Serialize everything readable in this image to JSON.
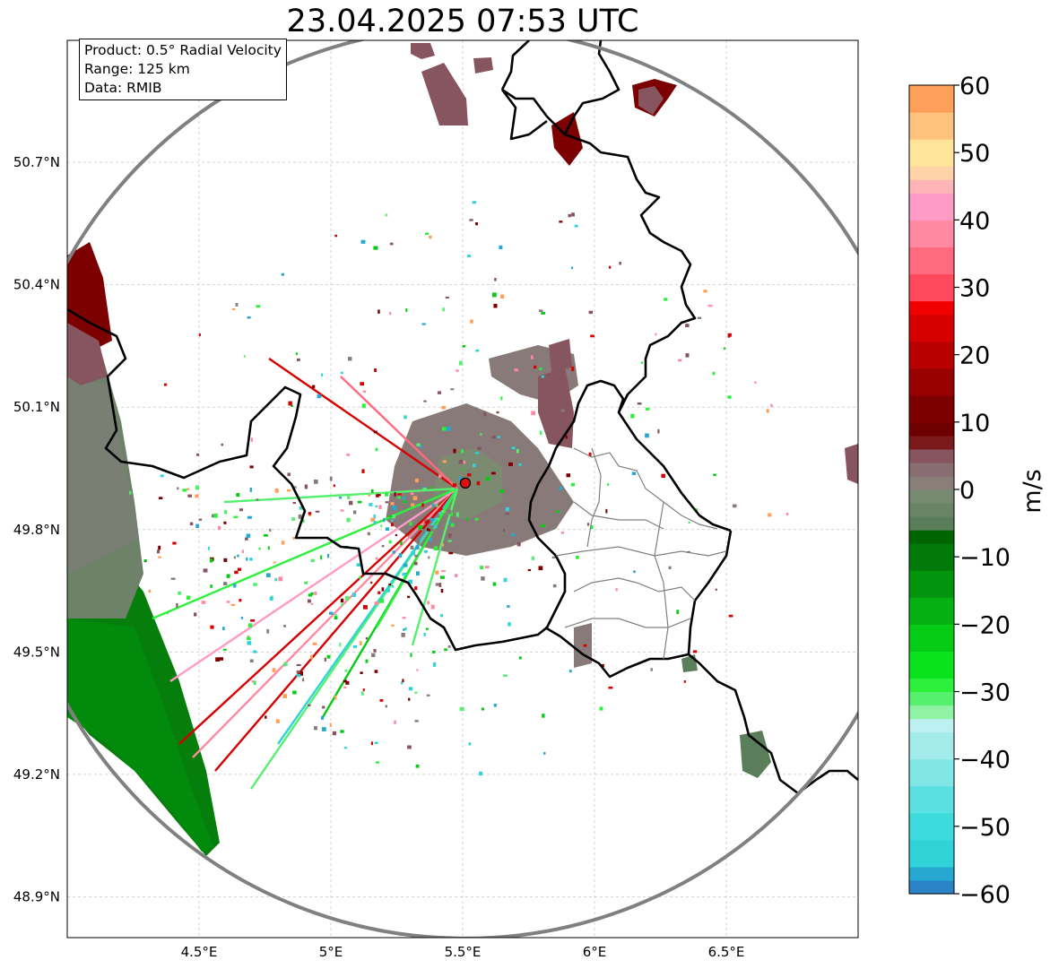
{
  "title": "23.04.2025 07:53 UTC",
  "info": {
    "product": "Product: 0.5° Radial Velocity",
    "range": "Range: 125 km",
    "data": "Data: RMIB"
  },
  "map": {
    "lon_ticks": [
      {
        "value": 4.5,
        "label": "4.5°E"
      },
      {
        "value": 5.0,
        "label": "5°E"
      },
      {
        "value": 5.5,
        "label": "5.5°E"
      },
      {
        "value": 6.0,
        "label": "6°E"
      },
      {
        "value": 6.5,
        "label": "6.5°E"
      }
    ],
    "lat_ticks": [
      {
        "value": 50.7,
        "label": "50.7°N"
      },
      {
        "value": 50.4,
        "label": "50.4°N"
      },
      {
        "value": 50.1,
        "label": "50.1°N"
      },
      {
        "value": 49.8,
        "label": "49.8°N"
      },
      {
        "value": 49.5,
        "label": "49.5°N"
      },
      {
        "value": 49.2,
        "label": "49.2°N"
      },
      {
        "value": 48.9,
        "label": "48.9°N"
      }
    ],
    "lon_range": [
      4.0,
      7.0
    ],
    "lat_range": [
      48.8,
      50.999
    ],
    "radar_site": {
      "lon": 5.51,
      "lat": 49.914
    },
    "range_km": 125,
    "grid": true,
    "range_ring_color": "#808080",
    "border_color": "#000000",
    "province_color": "#808080",
    "radar_marker_color": "#dd1111"
  },
  "colorbar": {
    "label": "m/s",
    "min": -60,
    "max": 60,
    "ticks": [
      {
        "value": 60,
        "label": "60"
      },
      {
        "value": 50,
        "label": "50"
      },
      {
        "value": 40,
        "label": "40"
      },
      {
        "value": 30,
        "label": "30"
      },
      {
        "value": 20,
        "label": "20"
      },
      {
        "value": 10,
        "label": "10"
      },
      {
        "value": 0,
        "label": "0"
      },
      {
        "value": -10,
        "label": "−10"
      },
      {
        "value": -20,
        "label": "−20"
      },
      {
        "value": -30,
        "label": "−30"
      },
      {
        "value": -40,
        "label": "−40"
      },
      {
        "value": -50,
        "label": "−50"
      },
      {
        "value": -60,
        "label": "−60"
      }
    ],
    "stops": [
      {
        "from": -60,
        "to": -58,
        "color": "#2b83c8"
      },
      {
        "from": -58,
        "to": -56,
        "color": "#26a8d0"
      },
      {
        "from": -56,
        "to": -52,
        "color": "#2fd3d8"
      },
      {
        "from": -52,
        "to": -48,
        "color": "#3ddbdb"
      },
      {
        "from": -48,
        "to": -44,
        "color": "#5ae0e0"
      },
      {
        "from": -44,
        "to": -40,
        "color": "#80e6e6"
      },
      {
        "from": -40,
        "to": -36,
        "color": "#a4ecec"
      },
      {
        "from": -36,
        "to": -34,
        "color": "#bdf0f0"
      },
      {
        "from": -34,
        "to": -32,
        "color": "#8ff2a4"
      },
      {
        "from": -32,
        "to": -30,
        "color": "#55f06e"
      },
      {
        "from": -30,
        "to": -28,
        "color": "#2cf03c"
      },
      {
        "from": -28,
        "to": -24,
        "color": "#0ae21b"
      },
      {
        "from": -24,
        "to": -20,
        "color": "#06cc16"
      },
      {
        "from": -20,
        "to": -16,
        "color": "#05b012"
      },
      {
        "from": -16,
        "to": -12,
        "color": "#03940e"
      },
      {
        "from": -12,
        "to": -8,
        "color": "#027a0a"
      },
      {
        "from": -8,
        "to": -6,
        "color": "#006400"
      },
      {
        "from": -6,
        "to": -4,
        "color": "#5a7d5a"
      },
      {
        "from": -4,
        "to": -2,
        "color": "#6a8566"
      },
      {
        "from": -2,
        "to": 0,
        "color": "#758a70"
      },
      {
        "from": 0,
        "to": 2,
        "color": "#8a7f78"
      },
      {
        "from": 2,
        "to": 4,
        "color": "#886d72"
      },
      {
        "from": 4,
        "to": 6,
        "color": "#875560"
      },
      {
        "from": 6,
        "to": 8,
        "color": "#7a1a1a"
      },
      {
        "from": 8,
        "to": 10,
        "color": "#6e0000"
      },
      {
        "from": 10,
        "to": 14,
        "color": "#7c0000"
      },
      {
        "from": 14,
        "to": 18,
        "color": "#990000"
      },
      {
        "from": 18,
        "to": 22,
        "color": "#b80000"
      },
      {
        "from": 22,
        "to": 26,
        "color": "#d60000"
      },
      {
        "from": 26,
        "to": 28,
        "color": "#f20000"
      },
      {
        "from": 28,
        "to": 32,
        "color": "#ff4a5e"
      },
      {
        "from": 32,
        "to": 36,
        "color": "#ff6a7e"
      },
      {
        "from": 36,
        "to": 40,
        "color": "#ff89a0"
      },
      {
        "from": 40,
        "to": 44,
        "color": "#ff9bc6"
      },
      {
        "from": 44,
        "to": 46,
        "color": "#ffb5b8"
      },
      {
        "from": 46,
        "to": 48,
        "color": "#ffd2a8"
      },
      {
        "from": 48,
        "to": 52,
        "color": "#ffe49a"
      },
      {
        "from": 52,
        "to": 56,
        "color": "#ffc27c"
      },
      {
        "from": 56,
        "to": 60,
        "color": "#ffa05a"
      }
    ]
  }
}
